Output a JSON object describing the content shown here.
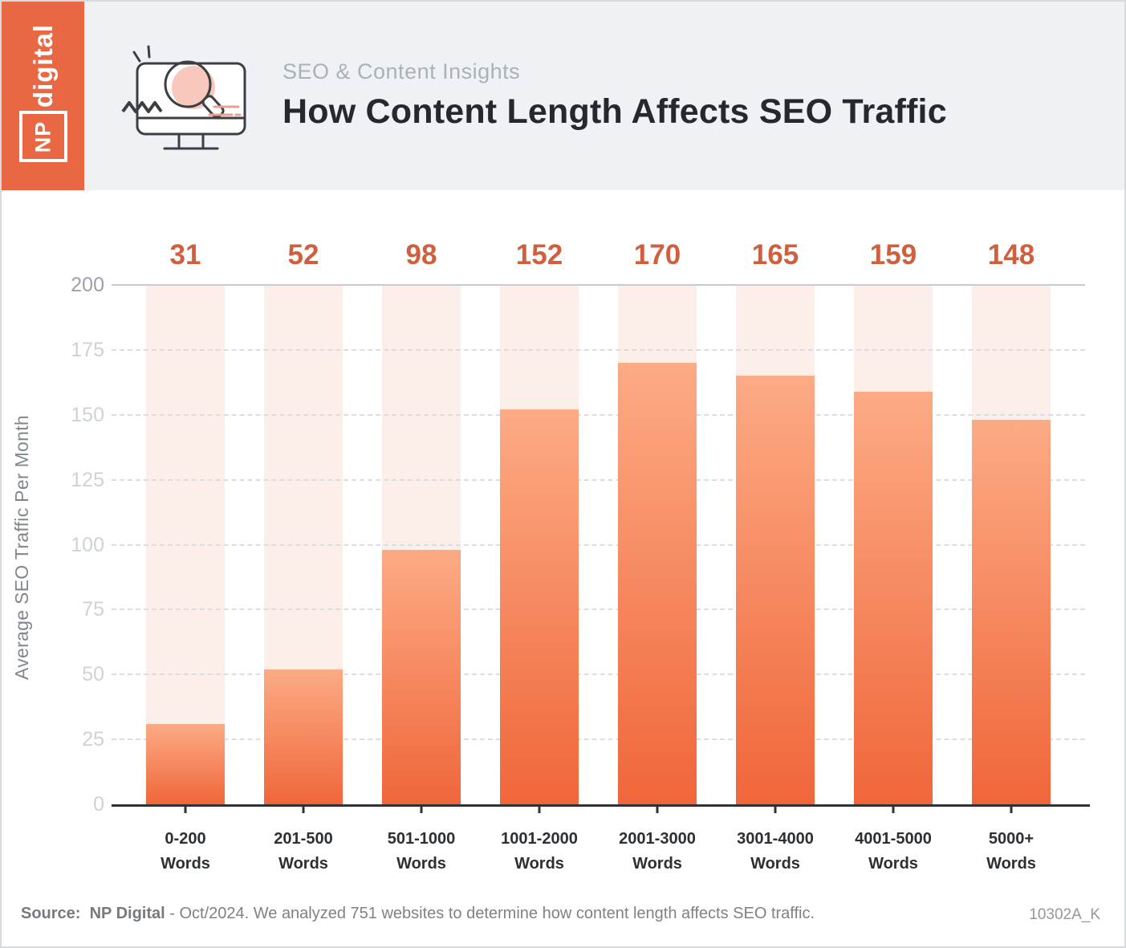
{
  "logo": {
    "digital": "digital",
    "np": "NP"
  },
  "header": {
    "eyebrow": "SEO & Content Insights",
    "title": "How Content Length Affects SEO Traffic"
  },
  "chart_data": {
    "type": "bar",
    "title": "How Content Length Affects SEO Traffic",
    "categories": [
      "0-200",
      "201-500",
      "501-1000",
      "1001-2000",
      "2001-3000",
      "3001-4000",
      "4001-5000",
      "5000+"
    ],
    "category_suffix": "Words",
    "values": [
      31,
      52,
      98,
      152,
      170,
      165,
      159,
      148
    ],
    "xlabel": "",
    "ylabel": "Average SEO Traffic Per Month",
    "ylim": [
      0,
      200
    ],
    "yticks": [
      0,
      25,
      50,
      75,
      100,
      125,
      150,
      175,
      200
    ],
    "grid": "horizontal dashed, solid line at 200",
    "legend": "none",
    "value_labels_position": "above plot"
  },
  "colors": {
    "accent": "#e96843",
    "bar_gradient_top": "#fcab85",
    "bar_gradient_bottom": "#f0663a",
    "bar_track": "#fcefe9",
    "value_label": "#d05f3d",
    "header_band": "#eff1f4",
    "icon_blob_pink": "#f7c8bb",
    "icon_line_orange": "#e8a08c"
  },
  "footer": {
    "source_label": "Source:",
    "source_name": "NP Digital",
    "source_rest": "- Oct/2024. We analyzed 751 websites to determine how content length affects SEO traffic.",
    "code": "10302A_K"
  }
}
